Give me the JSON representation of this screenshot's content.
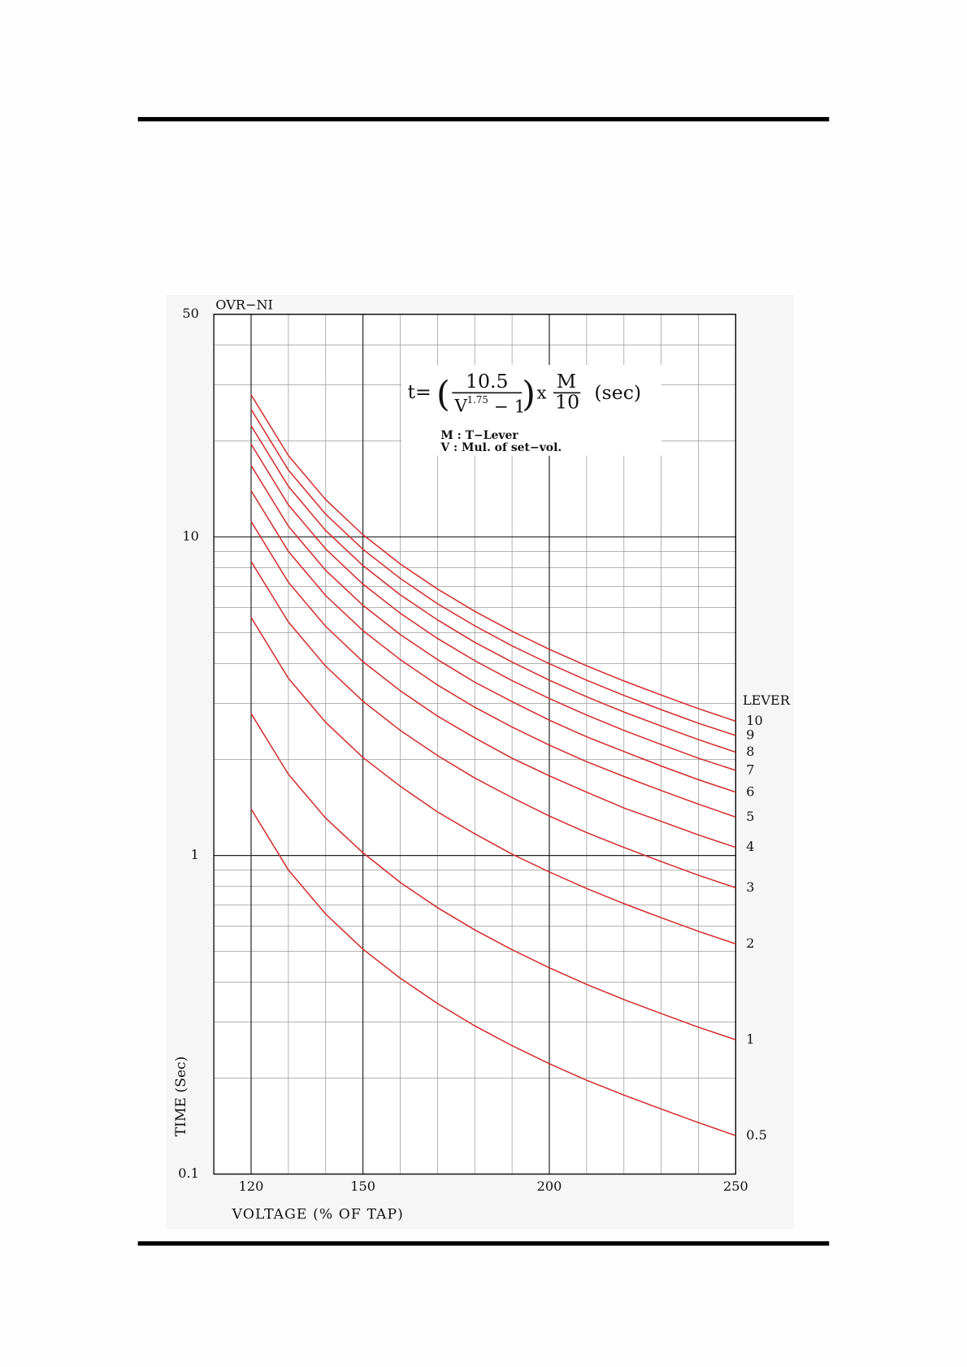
{
  "chart_data": {
    "type": "line",
    "title": "OVR−NI",
    "x_label": "VOLTAGE (% OF TAP)",
    "y_label": "TIME (Sec)",
    "legend_title": "LEVER",
    "formula": {
      "lhs": "t=",
      "open": "(",
      "numerator": "10.5",
      "base": "V",
      "exponent": "1.75",
      "minus": "−  1",
      "close": ")",
      "times": "x",
      "m": "M",
      "denominator": "10",
      "unit": "(sec)",
      "notes": [
        "M : T−Lever",
        "V : Mul. of set−vol."
      ]
    },
    "log_y": true,
    "grid": true,
    "color": "#d42a2a",
    "xlim": [
      110,
      250
    ],
    "xticks": [
      120,
      150,
      200,
      250
    ],
    "xminor": [
      110,
      130,
      140,
      160,
      170,
      180,
      190,
      210,
      220,
      230,
      240
    ],
    "ylim": [
      0.1,
      50
    ],
    "yticks": [
      0.1,
      1,
      10,
      50
    ],
    "yminor": [
      0.2,
      0.3,
      0.4,
      0.5,
      0.6,
      0.7,
      0.8,
      0.9,
      2,
      3,
      4,
      5,
      6,
      7,
      8,
      9,
      20,
      30,
      40
    ],
    "x": [
      120,
      130,
      140,
      150,
      160,
      170,
      180,
      190,
      200,
      210,
      220,
      230,
      240,
      250
    ],
    "series": [
      {
        "name": "10",
        "values": [
          27.94,
          18.02,
          13.1,
          10.16,
          8.23,
          6.86,
          5.84,
          5.06,
          4.44,
          3.94,
          3.53,
          3.19,
          2.89,
          2.64
        ]
      },
      {
        "name": "9",
        "values": [
          25.15,
          16.22,
          11.79,
          9.14,
          7.41,
          6.17,
          5.26,
          4.55,
          4.0,
          3.55,
          3.18,
          2.87,
          2.6,
          2.38
        ]
      },
      {
        "name": "8",
        "values": [
          22.35,
          14.42,
          10.48,
          8.13,
          6.58,
          5.49,
          4.67,
          4.05,
          3.55,
          3.15,
          2.82,
          2.55,
          2.31,
          2.11
        ]
      },
      {
        "name": "7",
        "values": [
          19.56,
          12.61,
          9.17,
          7.11,
          5.76,
          4.8,
          4.09,
          3.54,
          3.11,
          2.76,
          2.47,
          2.23,
          2.02,
          1.85
        ]
      },
      {
        "name": "6",
        "values": [
          16.76,
          10.81,
          7.86,
          6.1,
          4.94,
          4.12,
          3.5,
          3.04,
          2.66,
          2.36,
          2.12,
          1.91,
          1.73,
          1.58
        ]
      },
      {
        "name": "5",
        "values": [
          13.97,
          9.01,
          6.55,
          5.08,
          4.12,
          3.43,
          2.92,
          2.53,
          2.22,
          1.97,
          1.77,
          1.6,
          1.45,
          1.32
        ]
      },
      {
        "name": "4",
        "values": [
          11.18,
          7.21,
          5.24,
          4.06,
          3.29,
          2.74,
          2.34,
          2.02,
          1.78,
          1.58,
          1.41,
          1.28,
          1.16,
          1.06
        ]
      },
      {
        "name": "3",
        "values": [
          8.38,
          5.41,
          3.93,
          3.05,
          2.47,
          2.06,
          1.75,
          1.52,
          1.33,
          1.18,
          1.06,
          0.957,
          0.867,
          0.792
        ]
      },
      {
        "name": "2",
        "values": [
          5.59,
          3.6,
          2.62,
          2.03,
          1.65,
          1.37,
          1.17,
          1.01,
          0.888,
          0.788,
          0.706,
          0.638,
          0.578,
          0.528
        ]
      },
      {
        "name": "1",
        "values": [
          2.79,
          1.8,
          1.31,
          1.02,
          0.823,
          0.686,
          0.584,
          0.506,
          0.444,
          0.394,
          0.353,
          0.319,
          0.289,
          0.264
        ]
      },
      {
        "name": "0.5",
        "values": [
          1.4,
          0.901,
          0.655,
          0.508,
          0.412,
          0.343,
          0.292,
          0.253,
          0.222,
          0.197,
          0.177,
          0.16,
          0.145,
          0.132
        ]
      }
    ]
  }
}
